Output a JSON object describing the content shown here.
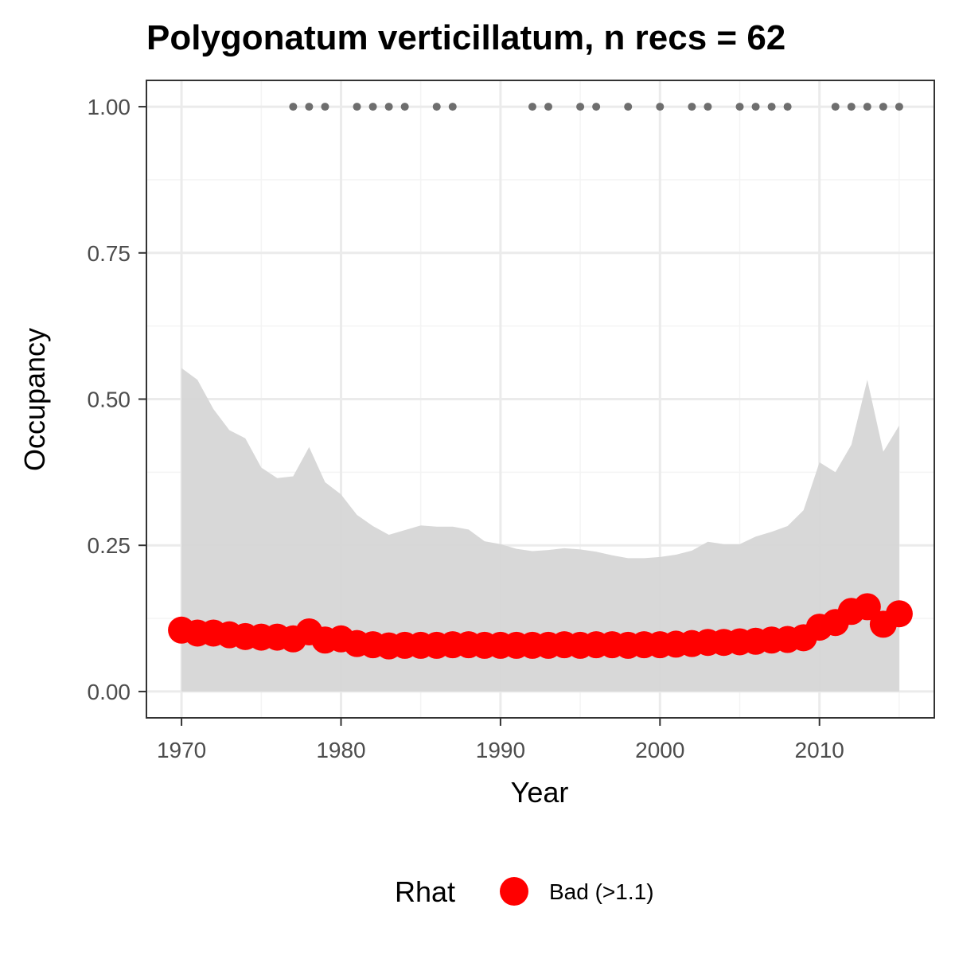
{
  "chart_data": {
    "type": "line",
    "title": "Polygonatum verticillatum, n recs = 62",
    "xlabel": "Year",
    "ylabel": "Occupancy",
    "xlim": [
      1967.8,
      2017.2
    ],
    "ylim": [
      -0.045,
      1.045
    ],
    "x_ticks": [
      1970,
      1980,
      1990,
      2000,
      2010
    ],
    "x_tick_labels": [
      "1970",
      "1980",
      "1990",
      "2000",
      "2010"
    ],
    "y_ticks": [
      0,
      0.25,
      0.5,
      0.75,
      1.0
    ],
    "y_tick_labels": [
      "0.00",
      "0.25",
      "0.50",
      "0.75",
      "1.00"
    ],
    "grid": true,
    "x": [
      1970,
      1971,
      1972,
      1973,
      1974,
      1975,
      1976,
      1977,
      1978,
      1979,
      1980,
      1981,
      1982,
      1983,
      1984,
      1985,
      1986,
      1987,
      1988,
      1989,
      1990,
      1991,
      1992,
      1993,
      1994,
      1995,
      1996,
      1997,
      1998,
      1999,
      2000,
      2001,
      2002,
      2003,
      2004,
      2005,
      2006,
      2007,
      2008,
      2009,
      2010,
      2011,
      2012,
      2013,
      2014,
      2015
    ],
    "occupancy": [
      0.105,
      0.1,
      0.1,
      0.097,
      0.094,
      0.093,
      0.093,
      0.09,
      0.102,
      0.088,
      0.09,
      0.082,
      0.08,
      0.078,
      0.079,
      0.079,
      0.079,
      0.08,
      0.08,
      0.079,
      0.079,
      0.079,
      0.079,
      0.079,
      0.08,
      0.079,
      0.08,
      0.08,
      0.079,
      0.08,
      0.08,
      0.081,
      0.082,
      0.084,
      0.084,
      0.085,
      0.086,
      0.088,
      0.089,
      0.092,
      0.11,
      0.118,
      0.137,
      0.145,
      0.115,
      0.133
    ],
    "ci_lower": [
      0,
      0,
      0,
      0,
      0,
      0,
      0,
      0,
      0,
      0,
      0,
      0,
      0,
      0,
      0,
      0,
      0,
      0,
      0,
      0,
      0,
      0,
      0,
      0,
      0,
      0,
      0,
      0,
      0,
      0,
      0,
      0,
      0,
      0,
      0,
      0,
      0,
      0,
      0,
      0,
      0,
      0,
      0,
      0,
      0,
      0
    ],
    "ci_upper": [
      0.553,
      0.533,
      0.483,
      0.447,
      0.433,
      0.383,
      0.365,
      0.368,
      0.418,
      0.358,
      0.337,
      0.302,
      0.283,
      0.268,
      0.276,
      0.284,
      0.282,
      0.282,
      0.277,
      0.257,
      0.252,
      0.244,
      0.24,
      0.242,
      0.245,
      0.243,
      0.239,
      0.233,
      0.228,
      0.228,
      0.23,
      0.234,
      0.241,
      0.256,
      0.252,
      0.252,
      0.265,
      0.273,
      0.283,
      0.31,
      0.392,
      0.375,
      0.422,
      0.533,
      0.41,
      0.455
    ],
    "record_years": [
      1977,
      1978,
      1979,
      1981,
      1982,
      1983,
      1984,
      1986,
      1987,
      1992,
      1993,
      1995,
      1996,
      1998,
      2000,
      2002,
      2003,
      2005,
      2006,
      2007,
      2008,
      2011,
      2012,
      2013,
      2014,
      2015
    ],
    "record_value": 1.0,
    "legend": {
      "title": "Rhat",
      "position": "bottom",
      "entries": [
        {
          "label": "Bad (>1.1)",
          "color": "#ff0000"
        }
      ]
    },
    "colors": {
      "point": "#ff0000",
      "ribbon": "#d6d6d6",
      "record": "#6e6e6e",
      "grid_major": "#ebebeb",
      "grid_minor": "#f4f4f4",
      "panel_border": "#333333"
    }
  }
}
